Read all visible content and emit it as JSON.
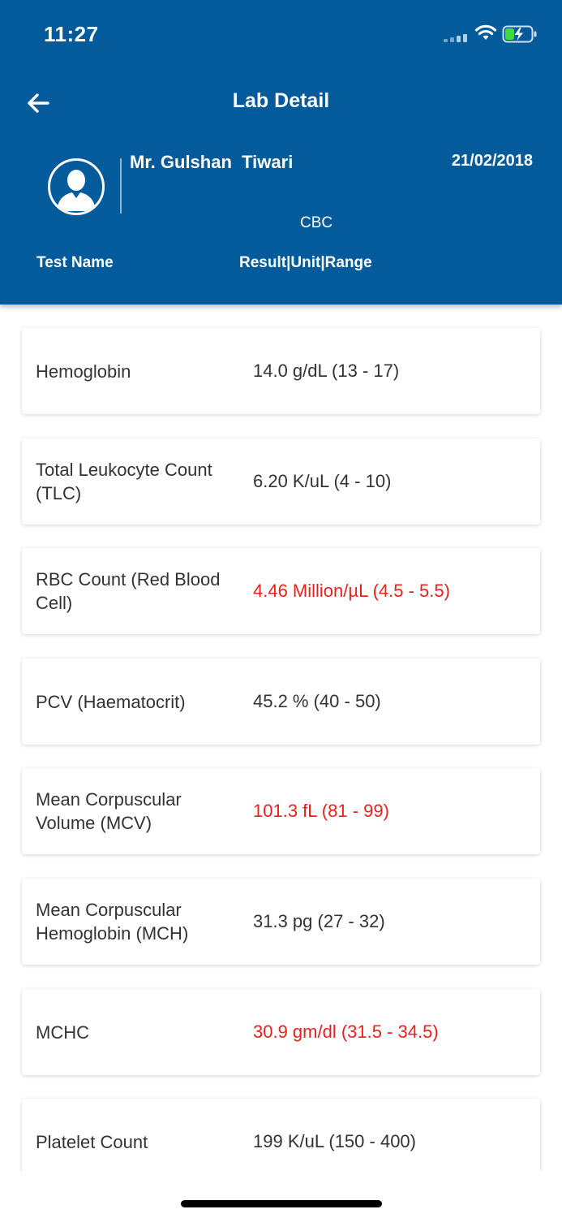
{
  "status_bar": {
    "time": "11:27"
  },
  "header": {
    "title": "Lab Detail",
    "patient_name": "Mr. Gulshan  Tiwari",
    "date": "21/02/2018",
    "panel": "CBC",
    "column_test": "Test Name",
    "column_result": "Result|Unit|Range"
  },
  "colors": {
    "header_bg": "#045b9c",
    "abnormal": "#e8211b",
    "text": "#333333"
  },
  "results": [
    {
      "name": "Hemoglobin",
      "result": "14.0 g/dL (13 - 17)",
      "abnormal": false
    },
    {
      "name": "Total Leukocyte Count (TLC)",
      "result": "6.20 K/uL (4 - 10)",
      "abnormal": false
    },
    {
      "name": "RBC Count (Red Blood Cell)",
      "result": "4.46 Million/µL (4.5 - 5.5)",
      "abnormal": true
    },
    {
      "name": "PCV (Haematocrit)",
      "result": "45.2 % (40 - 50)",
      "abnormal": false
    },
    {
      "name": "Mean Corpuscular Volume (MCV)",
      "result": "101.3 fL (81 - 99)",
      "abnormal": true
    },
    {
      "name": "Mean Corpuscular Hemoglobin (MCH)",
      "result": "31.3 pg (27 - 32)",
      "abnormal": false
    },
    {
      "name": "MCHC",
      "result": "30.9 gm/dl (31.5 - 34.5)",
      "abnormal": true
    },
    {
      "name": "Platelet Count",
      "result": "199 K/uL (150 - 400)",
      "abnormal": false
    }
  ]
}
